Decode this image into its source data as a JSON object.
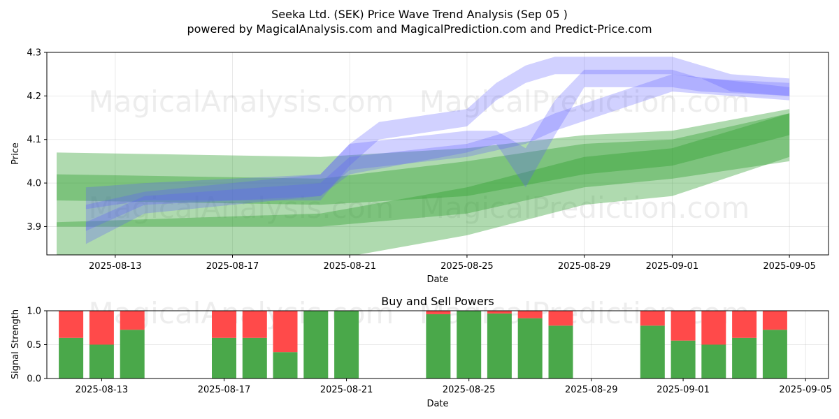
{
  "header": {
    "title": "Seeka Ltd. (SEK) Price Wave Trend Analysis (Sep 05 )",
    "subtitle": "powered by MagicalAnalysis.com and MagicalPrediction.com and Predict-Price.com"
  },
  "watermarks": {
    "a": "MagicalAnalysis.com",
    "b": "MagicalPrediction.com"
  },
  "colors": {
    "green": "#2e9e2e",
    "blue": "#5a5aff",
    "buy": "#4aa84a",
    "sell": "#ff4a4a"
  },
  "chart_data": [
    {
      "type": "area",
      "ylabel": "Price",
      "xlabel": "Date",
      "ylim": [
        3.835,
        4.3
      ],
      "xlim": [
        "2025-08-10 16:00",
        "2025-09-06 08:00"
      ],
      "grid": true,
      "x_ticks": [
        "2025-08-13",
        "2025-08-17",
        "2025-08-21",
        "2025-08-25",
        "2025-08-29",
        "2025-09-01",
        "2025-09-05"
      ],
      "y_ticks": [
        "3.9",
        "4.0",
        "4.1",
        "4.2",
        "4.3"
      ],
      "series": [
        {
          "color": "green",
          "x": [
            "2025-08-11",
            "2025-08-20",
            "2025-08-25",
            "2025-08-29",
            "2025-09-01",
            "2025-09-05"
          ],
          "lower": [
            3.83,
            3.82,
            3.88,
            3.95,
            3.97,
            4.06
          ],
          "upper": [
            4.07,
            4.06,
            4.08,
            4.11,
            4.12,
            4.17
          ]
        },
        {
          "color": "green",
          "x": [
            "2025-08-11",
            "2025-08-20",
            "2025-08-25",
            "2025-08-29",
            "2025-09-01",
            "2025-09-05"
          ],
          "lower": [
            3.96,
            3.95,
            3.97,
            4.02,
            4.04,
            4.11
          ],
          "upper": [
            4.02,
            4.01,
            4.05,
            4.09,
            4.1,
            4.16
          ]
        },
        {
          "color": "green",
          "x": [
            "2025-08-11",
            "2025-08-20",
            "2025-08-25",
            "2025-08-29",
            "2025-09-01",
            "2025-09-05"
          ],
          "lower": [
            3.9,
            3.9,
            3.93,
            3.99,
            4.01,
            4.05
          ],
          "upper": [
            3.91,
            3.93,
            3.99,
            4.06,
            4.08,
            4.16
          ]
        },
        {
          "color": "blue",
          "x": [
            "2025-08-12",
            "2025-08-14",
            "2025-08-20",
            "2025-08-21",
            "2025-08-22",
            "2025-08-25",
            "2025-08-26",
            "2025-08-27",
            "2025-08-28",
            "2025-09-01",
            "2025-09-02",
            "2025-09-03",
            "2025-09-05"
          ],
          "lower": [
            3.94,
            3.96,
            3.96,
            4.04,
            4.1,
            4.13,
            4.19,
            4.23,
            4.25,
            4.25,
            4.24,
            4.21,
            4.2
          ],
          "upper": [
            3.99,
            4.0,
            4.02,
            4.09,
            4.14,
            4.17,
            4.23,
            4.27,
            4.29,
            4.29,
            4.27,
            4.25,
            4.24
          ]
        },
        {
          "color": "blue",
          "x": [
            "2025-08-12",
            "2025-08-14",
            "2025-08-20",
            "2025-08-21",
            "2025-08-25",
            "2025-08-26",
            "2025-08-27",
            "2025-08-28",
            "2025-08-29",
            "2025-09-01",
            "2025-09-02",
            "2025-09-05"
          ],
          "lower": [
            3.89,
            3.95,
            3.97,
            4.02,
            4.07,
            4.09,
            3.99,
            4.11,
            4.22,
            4.22,
            4.21,
            4.2
          ],
          "upper": [
            3.95,
            3.98,
            4.02,
            4.09,
            4.12,
            4.12,
            4.08,
            4.19,
            4.26,
            4.26,
            4.24,
            4.23
          ]
        },
        {
          "color": "blue",
          "x": [
            "2025-08-12",
            "2025-08-14",
            "2025-08-20",
            "2025-08-21",
            "2025-08-25",
            "2025-08-27",
            "2025-08-28",
            "2025-09-01",
            "2025-09-05"
          ],
          "lower": [
            3.86,
            3.93,
            3.97,
            4.03,
            4.06,
            4.09,
            4.12,
            4.21,
            4.19
          ],
          "upper": [
            3.91,
            3.97,
            4.0,
            4.06,
            4.09,
            4.13,
            4.16,
            4.25,
            4.22
          ]
        }
      ]
    },
    {
      "type": "bar",
      "title": "Buy and Sell Powers",
      "ylabel": "Signal Strength",
      "xlabel": "Date",
      "ylim": [
        0.0,
        1.0
      ],
      "xlim": [
        "2025-08-11 05:00",
        "2025-09-05 18:00"
      ],
      "y_ticks": [
        "0.0",
        "0.5",
        "1.0"
      ],
      "x_ticks": [
        "2025-08-13",
        "2025-08-17",
        "2025-08-21",
        "2025-08-25",
        "2025-08-29",
        "2025-09-01",
        "2025-09-05"
      ],
      "categories": [
        "2025-08-12",
        "2025-08-13",
        "2025-08-14",
        "2025-08-17",
        "2025-08-18",
        "2025-08-19",
        "2025-08-20",
        "2025-08-21",
        "2025-08-24",
        "2025-08-25",
        "2025-08-26",
        "2025-08-27",
        "2025-08-28",
        "2025-08-31",
        "2025-09-01",
        "2025-09-02",
        "2025-09-03",
        "2025-09-04"
      ],
      "series": [
        {
          "name": "Buy",
          "values": [
            0.6,
            0.5,
            0.72,
            0.6,
            0.6,
            0.39,
            1.0,
            1.0,
            0.95,
            1.0,
            0.96,
            0.89,
            0.78,
            0.78,
            0.56,
            0.5,
            0.6,
            0.72
          ]
        },
        {
          "name": "Sell",
          "values": [
            0.4,
            0.5,
            0.28,
            0.4,
            0.4,
            0.61,
            0.0,
            0.0,
            0.05,
            0.0,
            0.04,
            0.11,
            0.22,
            0.22,
            0.44,
            0.5,
            0.4,
            0.28
          ]
        }
      ]
    }
  ]
}
